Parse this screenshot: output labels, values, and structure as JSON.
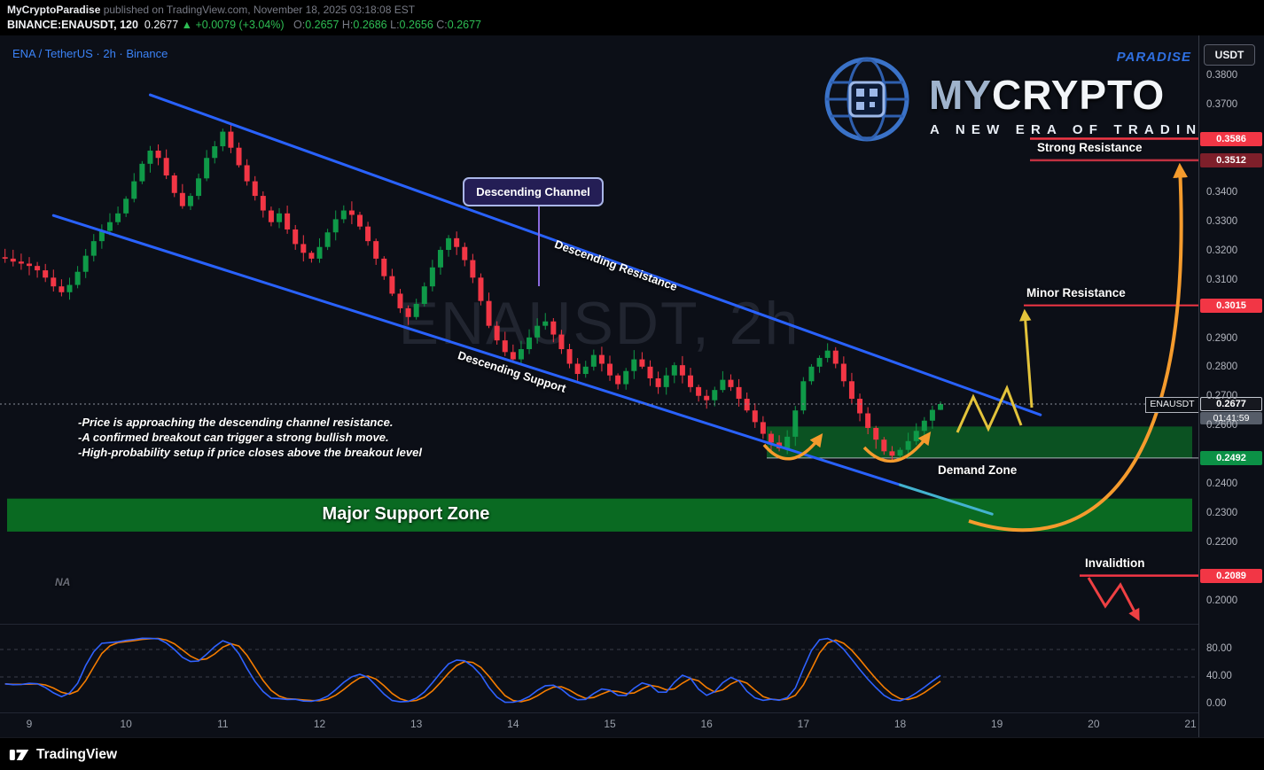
{
  "meta": {
    "publisher": "MyCryptoParadise",
    "published_suffix": " published on TradingView.com, November 18, 2025 03:18:08 EST"
  },
  "header": {
    "exchange_symbol": "BINANCE:ENAUSDT,",
    "interval": "120",
    "last_price": "0.2677",
    "change": "▲ +0.0079 (+3.04%)",
    "ohlc": [
      {
        "label": "O:",
        "value": "0.2657"
      },
      {
        "label": "H:",
        "value": "0.2686"
      },
      {
        "label": "L:",
        "value": "0.2656"
      },
      {
        "label": "C:",
        "value": "0.2677"
      }
    ]
  },
  "legend": "ENA / TetherUS · 2h · Binance",
  "watermark": "ENAUSDT, 2h",
  "logo": {
    "paradise": "PARADISE",
    "my": "MY",
    "crypto": "CRYPTO",
    "tagline": "A NEW ERA OF TRADING"
  },
  "annotations": {
    "descending_channel": "Descending Channel",
    "descending_resistance": "Descending Resistance",
    "descending_support": "Descending Support",
    "strong_resistance": "Strong Resistance",
    "minor_resistance": "Minor Resistance",
    "demand_zone": "Demand Zone",
    "major_support_zone": "Major Support Zone",
    "invalidation": "Invalidtion",
    "na": "NA",
    "notes": [
      "-Price is approaching the descending channel resistance.",
      "-A confirmed breakout can trigger a strong bullish move.",
      "-High-probability setup if price closes above the breakout level"
    ]
  },
  "price_scale": {
    "currency": "USDT",
    "ticks": [
      "0.3800",
      "0.3700",
      "0.3400",
      "0.3300",
      "0.3200",
      "0.3100",
      "0.2900",
      "0.2800",
      "0.2700",
      "0.2600",
      "0.2400",
      "0.2300",
      "0.2200",
      "0.2000"
    ],
    "levels": [
      {
        "value": "0.3586",
        "price": 0.3586,
        "bg": "#f23645"
      },
      {
        "value": "0.3512",
        "price": 0.3512,
        "bg": "#7e1f2a"
      },
      {
        "value": "0.3015",
        "price": 0.3015,
        "bg": "#f23645"
      },
      {
        "value": "0.2492",
        "price": 0.2492,
        "bg": "#0c9146"
      },
      {
        "value": "0.2089",
        "price": 0.2089,
        "bg": "#f23645"
      }
    ],
    "current": {
      "symbol": "ENAUSDT",
      "price": "0.2677",
      "countdown": "01:41:59"
    },
    "osc_ticks": [
      {
        "label": "80.00",
        "value": 80
      },
      {
        "label": "40.00",
        "value": 40
      },
      {
        "label": "0.00",
        "value": 0
      }
    ]
  },
  "time_axis": [
    "9",
    "10",
    "11",
    "12",
    "13",
    "14",
    "15",
    "16",
    "17",
    "18",
    "19",
    "20",
    "21"
  ],
  "footer": {
    "brand": "TradingView"
  },
  "chart_data": {
    "type": "candlestick",
    "symbol": "BINANCE:ENAUSDT",
    "interval_minutes": 120,
    "title": "ENA / TetherUS · 2h · Binance",
    "x_unit": "day of November 2025",
    "x_axis_labels": [
      "9",
      "10",
      "11",
      "12",
      "13",
      "14",
      "15",
      "16",
      "17",
      "18",
      "19",
      "20",
      "21"
    ],
    "x_start_day": 8.75,
    "candles_per_day": 12,
    "y_range": [
      0.195,
      0.3865
    ],
    "y_tick_step": 0.01,
    "first_open": 0.318,
    "closes": [
      0.3175,
      0.3165,
      0.3158,
      0.315,
      0.3135,
      0.311,
      0.308,
      0.306,
      0.3085,
      0.313,
      0.3185,
      0.3235,
      0.327,
      0.33,
      0.333,
      0.338,
      0.344,
      0.35,
      0.3545,
      0.352,
      0.346,
      0.34,
      0.3355,
      0.339,
      0.345,
      0.352,
      0.356,
      0.361,
      0.3555,
      0.3495,
      0.344,
      0.339,
      0.334,
      0.33,
      0.333,
      0.3275,
      0.3225,
      0.3195,
      0.3175,
      0.3215,
      0.3265,
      0.331,
      0.334,
      0.3325,
      0.3285,
      0.3235,
      0.3175,
      0.3115,
      0.3055,
      0.3005,
      0.2975,
      0.302,
      0.308,
      0.3145,
      0.3205,
      0.3245,
      0.3215,
      0.317,
      0.311,
      0.303,
      0.2945,
      0.2895,
      0.2855,
      0.283,
      0.2865,
      0.2905,
      0.2945,
      0.296,
      0.2915,
      0.2865,
      0.2815,
      0.278,
      0.2805,
      0.2845,
      0.2815,
      0.2775,
      0.2745,
      0.279,
      0.283,
      0.2805,
      0.2765,
      0.2735,
      0.2775,
      0.281,
      0.2775,
      0.2735,
      0.2705,
      0.269,
      0.2725,
      0.276,
      0.2735,
      0.2695,
      0.2655,
      0.2615,
      0.2575,
      0.2545,
      0.2525,
      0.2565,
      0.2655,
      0.2755,
      0.2805,
      0.2835,
      0.286,
      0.2815,
      0.2755,
      0.2695,
      0.2645,
      0.2595,
      0.2555,
      0.2515,
      0.25,
      0.252,
      0.255,
      0.2585,
      0.262,
      0.2657,
      0.2677
    ],
    "last_candle": {
      "open": 0.2657,
      "high": 0.2686,
      "low": 0.2656,
      "close": 0.2677
    },
    "colors": {
      "up": "#0f9948",
      "down": "#f23645",
      "channel": "#2962ff"
    },
    "levels": {
      "strong_resistance": [
        0.3586,
        0.3512
      ],
      "minor_resistance": 0.3015,
      "current_price": 0.2677,
      "demand_zone": [
        0.2492,
        0.26
      ],
      "major_support_zone": [
        0.224,
        0.2353
      ],
      "invalidation": 0.2089
    },
    "channel": {
      "resistance": {
        "from_day": 10.25,
        "from_price": 0.3736,
        "to_day": 19.45,
        "to_price": 0.264
      },
      "support": {
        "from_day": 9.25,
        "from_price": 0.3323,
        "to_day": 18.0,
        "to_price": 0.24
      },
      "support_tail": {
        "from_day": 18.0,
        "from_price": 0.24,
        "to_day": 18.95,
        "to_price": 0.23
      }
    },
    "oscillator": {
      "type": "stochastic",
      "k_period": 14,
      "smoothing": 3,
      "range": [
        0,
        100
      ],
      "bands": [
        80,
        40,
        0
      ],
      "k_color": "#2f62ff",
      "d_color": "#f57c00"
    }
  }
}
